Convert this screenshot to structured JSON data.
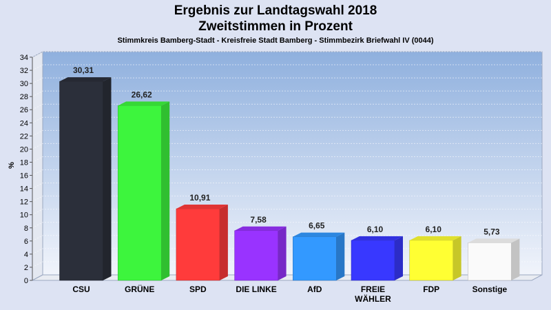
{
  "chart_data": {
    "type": "bar",
    "title": "Ergebnis zur Landtagswahl 2018",
    "subtitle": "Zweitstimmen in Prozent",
    "subsubtitle": "Stimmkreis Bamberg-Stadt - Kreisfreie Stadt Bamberg - Stimmbezirk Briefwahl IV (0044)",
    "ylabel": "%",
    "ylim": [
      0,
      34
    ],
    "ytick_step": 2,
    "grid": true,
    "categories": [
      "CSU",
      "GRÜNE",
      "SPD",
      "DIE LINKE",
      "AfD",
      "FREIE WÄHLER",
      "FDP",
      "Sonstige"
    ],
    "category_lines": [
      [
        "CSU"
      ],
      [
        "GRÜNE"
      ],
      [
        "SPD"
      ],
      [
        "DIE LINKE"
      ],
      [
        "AfD"
      ],
      [
        "FREIE",
        "WÄHLER"
      ],
      [
        "FDP"
      ],
      [
        "Sonstige"
      ]
    ],
    "values": [
      30.31,
      26.62,
      10.91,
      7.58,
      6.65,
      6.1,
      6.1,
      5.73
    ],
    "value_labels": [
      "30,31",
      "26,62",
      "10,91",
      "7,58",
      "6,65",
      "6,10",
      "6,10",
      "5,73"
    ],
    "colors": [
      "#2b2f3a",
      "#3df53d",
      "#ff3b3b",
      "#9933ff",
      "#3399ff",
      "#3838ff",
      "#ffff33",
      "#fafafa"
    ]
  }
}
